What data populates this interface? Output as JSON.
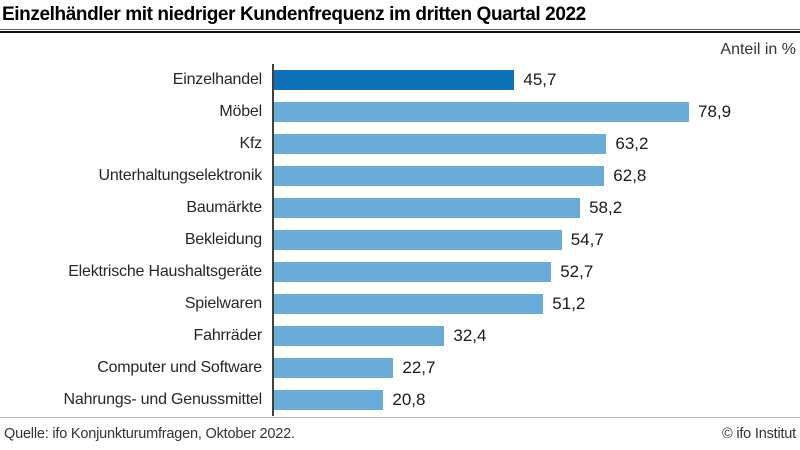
{
  "title": "Einzelhändler mit niedriger Kundenfrequenz im dritten Quartal 2022",
  "unit_label": "Anteil in %",
  "footer": {
    "source": "Quelle: ifo Konjunkturumfragen, Oktober 2022.",
    "copyright": "© ifo Institut"
  },
  "colors": {
    "highlight_bar": "#0e72b8",
    "bar": "#68aad8",
    "axis": "#404040"
  },
  "chart_data": {
    "type": "bar",
    "orientation": "horizontal",
    "title": "Einzelhändler mit niedriger Kundenfrequenz im dritten Quartal 2022",
    "xlabel": "Anteil in %",
    "ylabel": "",
    "xlim": [
      0,
      80
    ],
    "grid": false,
    "legend": false,
    "categories": [
      "Einzelhandel",
      "Möbel",
      "Kfz",
      "Unterhaltungselektronik",
      "Baumärkte",
      "Bekleidung",
      "Elektrische Haushaltsgeräte",
      "Spielwaren",
      "Fahrräder",
      "Computer und Software",
      "Nahrungs- und Genussmittel"
    ],
    "values": [
      45.7,
      78.9,
      63.2,
      62.8,
      58.2,
      54.7,
      52.7,
      51.2,
      32.4,
      22.7,
      20.8
    ],
    "value_labels": [
      "45,7",
      "78,9",
      "63,2",
      "62,8",
      "58,2",
      "54,7",
      "52,7",
      "51,2",
      "32,4",
      "22,7",
      "20,8"
    ],
    "highlighted_category": "Einzelhandel"
  }
}
